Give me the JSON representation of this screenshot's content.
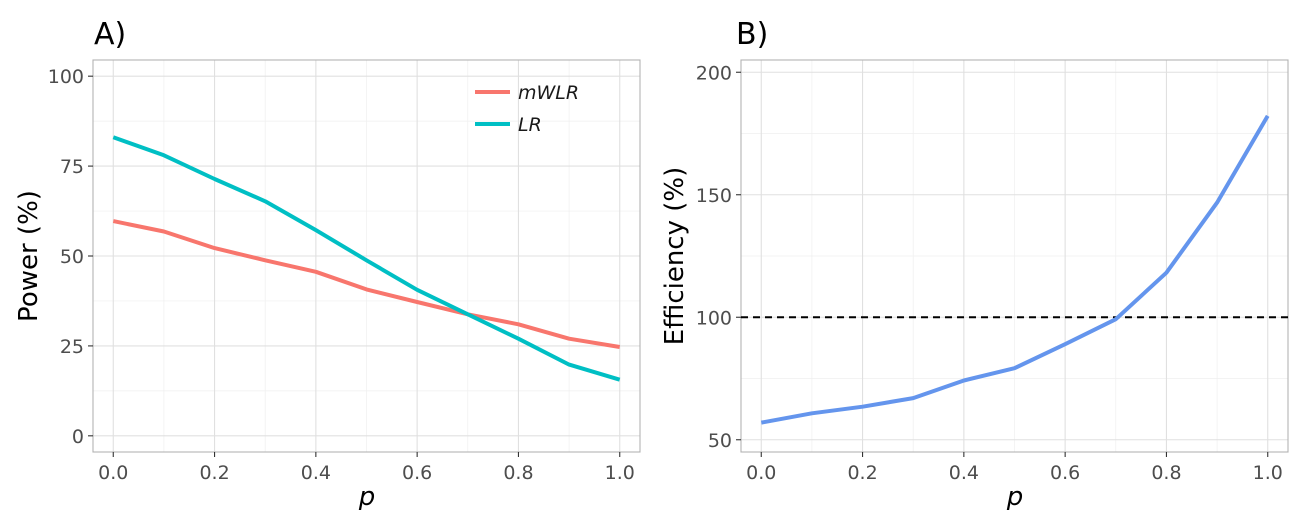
{
  "chart_data": [
    {
      "type": "line",
      "panel_label": "A)",
      "xlabel": "p",
      "ylabel": "Power (%)",
      "x": [
        0.0,
        0.1,
        0.2,
        0.3,
        0.4,
        0.5,
        0.6,
        0.7,
        0.8,
        0.9,
        1.0
      ],
      "xlim": [
        -0.04,
        1.04
      ],
      "ylim": [
        -4.5,
        104.5
      ],
      "xticks": [
        0.0,
        0.2,
        0.4,
        0.6,
        0.8,
        1.0
      ],
      "xtick_labels": [
        "0.0",
        "0.2",
        "0.4",
        "0.6",
        "0.8",
        "1.0"
      ],
      "yticks": [
        0,
        25,
        50,
        75,
        100
      ],
      "ytick_labels": [
        "0",
        "25",
        "50",
        "75",
        "100"
      ],
      "grid": true,
      "legend_position": "top-right",
      "series": [
        {
          "name": "mWLR",
          "color": "#F8766D",
          "values": [
            59.7,
            56.8,
            52.2,
            48.8,
            45.6,
            40.7,
            37.2,
            33.8,
            31.0,
            27.0,
            24.7
          ]
        },
        {
          "name": "LR",
          "color": "#00BFC4",
          "values": [
            83.0,
            78.0,
            71.4,
            65.2,
            57.2,
            48.8,
            40.6,
            33.8,
            27.0,
            19.8,
            15.6
          ]
        }
      ]
    },
    {
      "type": "line",
      "panel_label": "B)",
      "xlabel": "p",
      "ylabel": "Efficiency (%)",
      "x": [
        0.0,
        0.1,
        0.2,
        0.3,
        0.4,
        0.5,
        0.6,
        0.7,
        0.8,
        0.9,
        1.0
      ],
      "xlim": [
        -0.04,
        1.04
      ],
      "ylim": [
        45,
        205
      ],
      "xticks": [
        0.0,
        0.2,
        0.4,
        0.6,
        0.8,
        1.0
      ],
      "xtick_labels": [
        "0.0",
        "0.2",
        "0.4",
        "0.6",
        "0.8",
        "1.0"
      ],
      "yticks": [
        50,
        100,
        150,
        200
      ],
      "ytick_labels": [
        "50",
        "100",
        "150",
        "200"
      ],
      "grid": true,
      "reference_line": {
        "y": 100,
        "style": "dashed",
        "color": "#000000"
      },
      "series": [
        {
          "color": "#6495ED",
          "values": [
            57.0,
            60.8,
            63.5,
            67.0,
            74.2,
            79.2,
            89.0,
            99.2,
            118.2,
            146.8,
            182.2
          ]
        }
      ]
    }
  ]
}
